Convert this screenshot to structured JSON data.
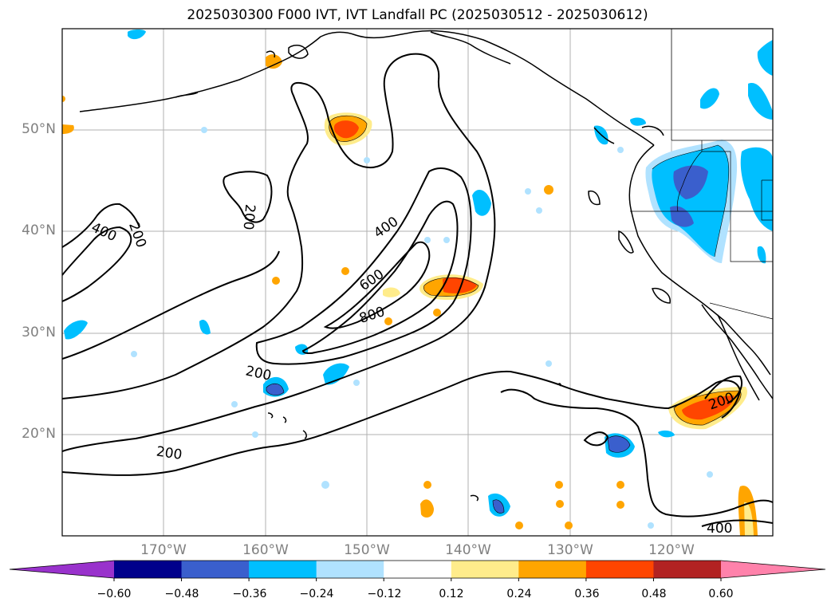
{
  "title": "2025030300 F000 IVT, IVT Landfall PC (2025030512 - 2025030612)",
  "map": {
    "lon_range": [
      -180,
      -110
    ],
    "lat_range": [
      10,
      60
    ],
    "lat_ticks": [
      {
        "value": 50,
        "label": "50°N"
      },
      {
        "value": 40,
        "label": "40°N"
      },
      {
        "value": 30,
        "label": "30°N"
      },
      {
        "value": 20,
        "label": "20°N"
      }
    ],
    "lon_ticks": [
      {
        "value": -170,
        "label": "170°W"
      },
      {
        "value": -160,
        "label": "160°W"
      },
      {
        "value": -150,
        "label": "150°W"
      },
      {
        "value": -140,
        "label": "140°W"
      },
      {
        "value": -130,
        "label": "130°W"
      },
      {
        "value": -120,
        "label": "120°W"
      }
    ],
    "gridlines": true,
    "ivt_contour_labels": [
      "400",
      "200",
      "200",
      "400",
      "600",
      "800",
      "200",
      "200",
      "200",
      "400"
    ]
  },
  "colorbar": {
    "colors": [
      "#9932cc",
      "#00008b",
      "#3a5fcd",
      "#00bfff",
      "#b0e2ff",
      "#ffffff",
      "#ffec8b",
      "#ffa500",
      "#ff4500",
      "#b22222",
      "#ff82ab"
    ],
    "ticks": [
      "−0.60",
      "−0.48",
      "−0.36",
      "−0.24",
      "−0.12",
      "0.12",
      "0.24",
      "0.36",
      "0.48",
      "0.60"
    ]
  }
}
